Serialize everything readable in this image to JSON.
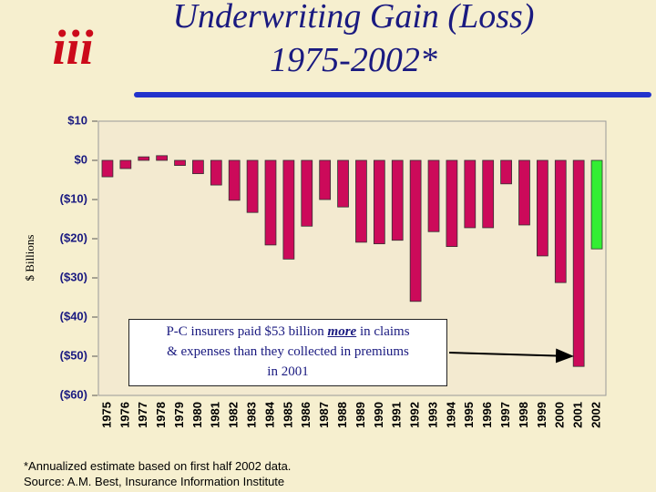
{
  "chart_data": {
    "type": "bar",
    "logo": "iii",
    "title": [
      "Underwriting Gain (Loss)",
      "1975-2002*"
    ],
    "y_label": "$ Billions",
    "categories": [
      "1975",
      "1976",
      "1977",
      "1978",
      "1979",
      "1980",
      "1981",
      "1982",
      "1983",
      "1984",
      "1985",
      "1986",
      "1987",
      "1988",
      "1989",
      "1990",
      "1991",
      "1992",
      "1993",
      "1994",
      "1995",
      "1996",
      "1997",
      "1998",
      "1999",
      "2000",
      "2001",
      "2002"
    ],
    "values": [
      -4.2,
      -2.1,
      0.9,
      1.2,
      -1.3,
      -3.4,
      -6.3,
      -10.2,
      -13.3,
      -21.6,
      -25.2,
      -16.8,
      -10.0,
      -11.9,
      -20.9,
      -21.3,
      -20.4,
      -36.0,
      -18.2,
      -22.0,
      -17.2,
      -17.2,
      -6.0,
      -16.5,
      -24.4,
      -31.2,
      -52.6,
      -22.6
    ],
    "colors": [
      "#cc0a5a",
      "#cc0a5a",
      "#cc0a5a",
      "#cc0a5a",
      "#cc0a5a",
      "#cc0a5a",
      "#cc0a5a",
      "#cc0a5a",
      "#cc0a5a",
      "#cc0a5a",
      "#cc0a5a",
      "#cc0a5a",
      "#cc0a5a",
      "#cc0a5a",
      "#cc0a5a",
      "#cc0a5a",
      "#cc0a5a",
      "#cc0a5a",
      "#cc0a5a",
      "#cc0a5a",
      "#cc0a5a",
      "#cc0a5a",
      "#cc0a5a",
      "#cc0a5a",
      "#cc0a5a",
      "#cc0a5a",
      "#cc0a5a",
      "#33ee33"
    ],
    "ylim": [
      -60,
      10
    ],
    "yticks": [
      {
        "value": 10,
        "label": "$10"
      },
      {
        "value": 0,
        "label": "$0"
      },
      {
        "value": -10,
        "label": "($10)"
      },
      {
        "value": -20,
        "label": "($20)"
      },
      {
        "value": -30,
        "label": "($30)"
      },
      {
        "value": -40,
        "label": "($40)"
      },
      {
        "value": -50,
        "label": "($50)"
      },
      {
        "value": -60,
        "label": "($60)"
      }
    ],
    "annotation": {
      "line1": [
        "P-C insurers paid $53 billion",
        "more",
        "in claims"
      ],
      "line2": "& expenses than they collected in premiums",
      "line3": "in 2001"
    },
    "footnotes": [
      "*Annualized estimate based on first half 2002 data.",
      "Source:  A.M. Best, Insurance Information Institute"
    ]
  }
}
